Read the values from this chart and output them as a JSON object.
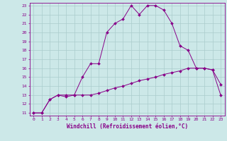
{
  "xlabel": "Windchill (Refroidissement éolien,°C)",
  "bg_color": "#cce8e8",
  "grid_color": "#aacccc",
  "line_color": "#880088",
  "curve1_x": [
    0,
    1,
    2,
    3,
    4,
    5,
    6,
    7,
    8,
    9,
    10,
    11,
    12,
    13,
    14,
    15,
    16,
    17,
    18,
    19,
    20,
    21,
    22,
    23
  ],
  "curve1_y": [
    11,
    11,
    12.5,
    13,
    12.8,
    13,
    15,
    16.5,
    16.5,
    20,
    21,
    21.5,
    23,
    22,
    23,
    23,
    22.5,
    21,
    18.5,
    18,
    16,
    16,
    15.8,
    13
  ],
  "curve2_x": [
    0,
    1,
    2,
    3,
    4,
    5,
    6,
    7,
    8,
    9,
    10,
    11,
    12,
    13,
    14,
    15,
    16,
    17,
    18,
    19,
    20,
    21,
    22,
    23
  ],
  "curve2_y": [
    11,
    11,
    12.5,
    13,
    13,
    13,
    13,
    13,
    13.2,
    13.5,
    13.8,
    14,
    14.3,
    14.6,
    14.8,
    15,
    15.3,
    15.5,
    15.7,
    16,
    16,
    16,
    15.8,
    14.2
  ],
  "ylim": [
    11,
    23
  ],
  "xlim": [
    0,
    23
  ],
  "yticks": [
    11,
    12,
    13,
    14,
    15,
    16,
    17,
    18,
    19,
    20,
    21,
    22,
    23
  ],
  "xticks": [
    0,
    1,
    2,
    3,
    4,
    5,
    6,
    7,
    8,
    9,
    10,
    11,
    12,
    13,
    14,
    15,
    16,
    17,
    18,
    19,
    20,
    21,
    22,
    23
  ],
  "tick_fontsize": 4.5,
  "xlabel_fontsize": 5.5
}
